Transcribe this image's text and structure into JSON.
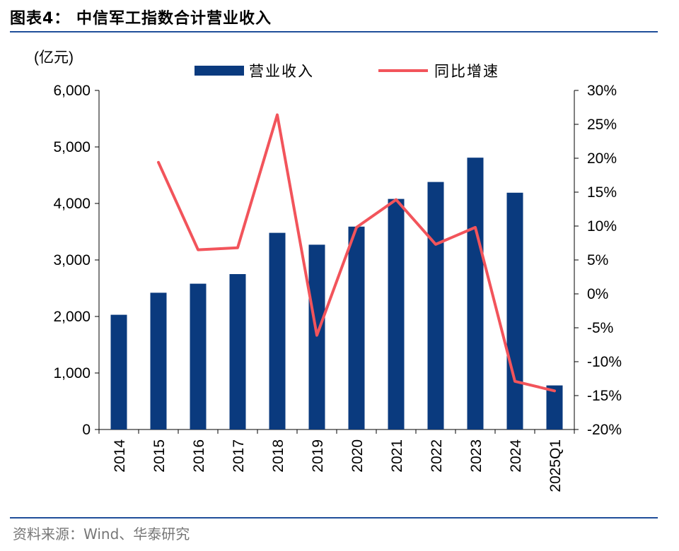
{
  "figure": {
    "title": "图表4：  中信军工指数合计营业收入",
    "source": "资料来源：Wind、华泰研究"
  },
  "chart_data": {
    "type": "bar",
    "categories": [
      "2014",
      "2015",
      "2016",
      "2017",
      "2018",
      "2019",
      "2020",
      "2021",
      "2022",
      "2023",
      "2024",
      "2025Q1"
    ],
    "series": [
      {
        "name": "营业收入",
        "type": "bar",
        "axis": "left",
        "color": "#0a3a7e",
        "values": [
          2030,
          2420,
          2580,
          2750,
          3480,
          3270,
          3590,
          4080,
          4380,
          4810,
          4190,
          780
        ]
      },
      {
        "name": "同比增速",
        "type": "line",
        "axis": "right",
        "color": "#f2545b",
        "values": [
          null,
          19.4,
          6.5,
          6.8,
          26.4,
          -6.1,
          9.8,
          13.9,
          7.3,
          9.8,
          -12.9,
          -14.3
        ]
      }
    ],
    "left_axis": {
      "label": "(亿元)",
      "ylim": [
        0,
        6000
      ],
      "ticks": [
        "0",
        "1,000",
        "2,000",
        "3,000",
        "4,000",
        "5,000",
        "6,000"
      ],
      "tick_values": [
        0,
        1000,
        2000,
        3000,
        4000,
        5000,
        6000
      ]
    },
    "right_axis": {
      "ylim": [
        -20,
        30
      ],
      "ticks": [
        "-20%",
        "-15%",
        "-10%",
        "-5%",
        "0%",
        "5%",
        "10%",
        "15%",
        "20%",
        "25%",
        "30%"
      ],
      "tick_values": [
        -20,
        -15,
        -10,
        -5,
        0,
        5,
        10,
        15,
        20,
        25,
        30
      ]
    },
    "legend_position": "top",
    "grid": false
  }
}
